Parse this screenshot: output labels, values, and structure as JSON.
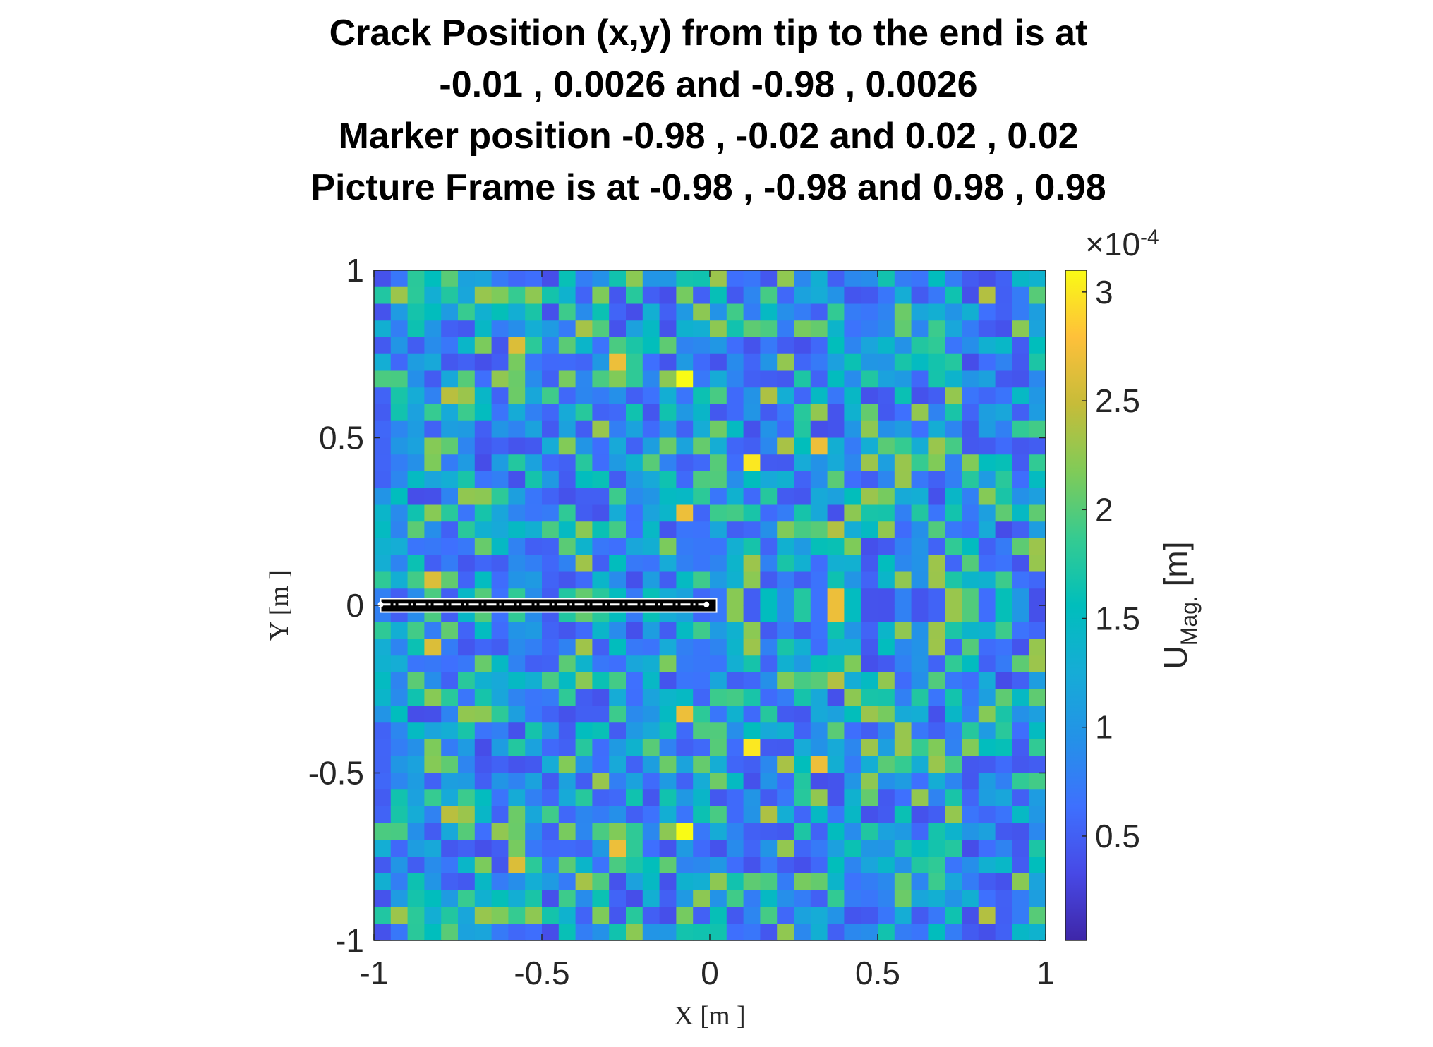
{
  "chart_data": {
    "type": "heatmap",
    "title": [
      "Crack Position (x,y) from tip to the end is at",
      "-0.01 , 0.0026 and -0.98 , 0.0026",
      "Marker position -0.98 , -0.02 and 0.02 , 0.02",
      "Picture Frame is at -0.98 , -0.98 and 0.98 , 0.98"
    ],
    "xlabel": "X [m ]",
    "ylabel": "Y [m ]",
    "xlim": [
      -1,
      1
    ],
    "ylim": [
      -1,
      1
    ],
    "xticks": [
      -1,
      -0.5,
      0,
      0.5,
      1
    ],
    "xtick_labels": [
      "-1",
      "-0.5",
      "0",
      "0.5",
      "1"
    ],
    "yticks": [
      1,
      0.5,
      0,
      -0.5,
      -1
    ],
    "ytick_labels": [
      "1",
      "0.5",
      "0",
      "-0.5",
      "-1"
    ],
    "grid": false,
    "colormap": "parula",
    "grid_size": [
      40,
      40
    ],
    "colorbar": {
      "label_main": "U",
      "label_sub": "Mag.",
      "label_unit": " [m]",
      "exponent_prefix": "×10",
      "exponent": "-4",
      "range": [
        0.02,
        3.1
      ],
      "ticks": [
        3,
        2.5,
        2,
        1.5,
        1,
        0.5
      ],
      "tick_labels": [
        "3",
        "2.5",
        "2",
        "1.5",
        "1",
        "0.5"
      ]
    },
    "crack": {
      "tip": [
        -0.01,
        0.0026
      ],
      "end": [
        -0.98,
        0.0026
      ]
    },
    "marker": {
      "corner_a": [
        -0.98,
        -0.02
      ],
      "corner_b": [
        0.02,
        0.02
      ]
    },
    "hotspots": [
      {
        "x": -0.1,
        "y": 0.66,
        "value": 3.1
      },
      {
        "x": -0.1,
        "y": -0.66,
        "value": 3.1
      },
      {
        "x": 0.1,
        "y": 0.42,
        "value": 3.0
      },
      {
        "x": 0.1,
        "y": -0.42,
        "value": 3.0
      },
      {
        "x": 0.34,
        "y": 0.46,
        "value": 2.7
      },
      {
        "x": 0.34,
        "y": -0.46,
        "value": 2.7
      },
      {
        "x": 0.38,
        "y": 0.02,
        "value": 2.7
      },
      {
        "x": 0.38,
        "y": -0.02,
        "value": 2.7
      },
      {
        "x": -0.06,
        "y": 0.3,
        "value": 2.7
      },
      {
        "x": -0.06,
        "y": -0.3,
        "value": 2.7
      },
      {
        "x": -0.3,
        "y": 0.74,
        "value": 2.7
      },
      {
        "x": -0.3,
        "y": -0.74,
        "value": 2.7
      },
      {
        "x": -0.58,
        "y": 0.78,
        "value": 2.6
      },
      {
        "x": -0.58,
        "y": -0.78,
        "value": 2.6
      },
      {
        "x": -0.82,
        "y": 0.1,
        "value": 2.6
      },
      {
        "x": -0.82,
        "y": -0.1,
        "value": 2.6
      },
      {
        "x": -0.9,
        "y": 0.9,
        "value": 2.3
      },
      {
        "x": -0.9,
        "y": -0.9,
        "value": 2.3
      },
      {
        "x": 0.02,
        "y": 0.98,
        "value": 2.3
      },
      {
        "x": 0.98,
        "y": 0.18,
        "value": 2.3
      },
      {
        "x": 0.98,
        "y": -0.18,
        "value": 2.3
      },
      {
        "x": -0.82,
        "y": 0.46,
        "value": 2.2
      },
      {
        "x": -0.82,
        "y": -0.46,
        "value": 2.2
      }
    ]
  }
}
